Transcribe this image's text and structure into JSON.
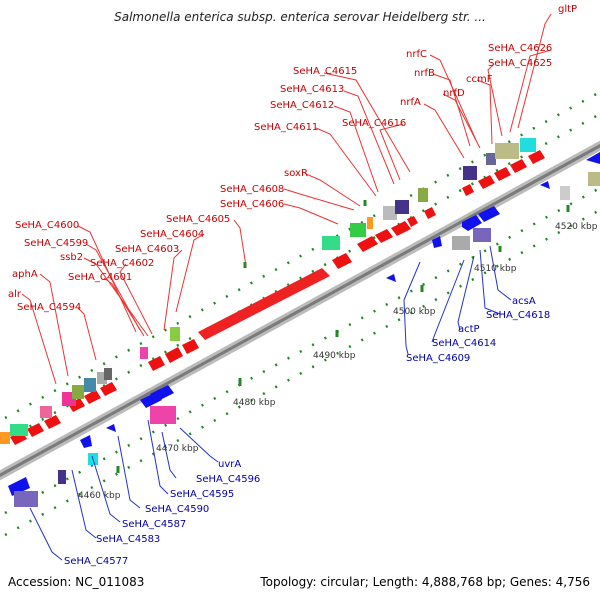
{
  "title": "Salmonella enterica subsp. enterica serovar Heidelberg str. ...",
  "footer": {
    "accession": "Accession: NC_011083",
    "summary": "Topology: circular; Length: 4,888,768 bp; Genes: 4,756"
  },
  "colors": {
    "top_label": "#cc0000",
    "bottom_label": "#0000aa",
    "forward_gene": "#ee0000",
    "reverse_gene": "#0000ee",
    "backbone": "#999999",
    "tick": "#228822"
  },
  "scale_labels": [
    "4460 kbp",
    "4470 kbp",
    "4480 kbp",
    "4490 kbp",
    "4500 kbp",
    "4510 kbp",
    "4520 kbp"
  ],
  "top_labels": [
    "gltP",
    "SeHA_C4626",
    "nrfC",
    "SeHA_C4625",
    "nrfB",
    "ccmF",
    "nrfD",
    "nrfA",
    "SeHA_C4615",
    "SeHA_C4613",
    "SeHA_C4612",
    "SeHA_C4616",
    "SeHA_C4611",
    "soxR",
    "SeHA_C4608",
    "SeHA_C4606",
    "SeHA_C4605",
    "SeHA_C4604",
    "SeHA_C4600",
    "SeHA_C4603",
    "SeHA_C4599",
    "ssb2",
    "SeHA_C4602",
    "SeHA_C4601",
    "aphA",
    "alr",
    "SeHA_C4594"
  ],
  "bottom_labels": [
    "acsA",
    "SeHA_C4618",
    "actP",
    "SeHA_C4614",
    "SeHA_C4609",
    "uvrA",
    "SeHA_C4596",
    "SeHA_C4595",
    "SeHA_C4590",
    "SeHA_C4587",
    "SeHA_C4583",
    "SeHA_C4577"
  ]
}
